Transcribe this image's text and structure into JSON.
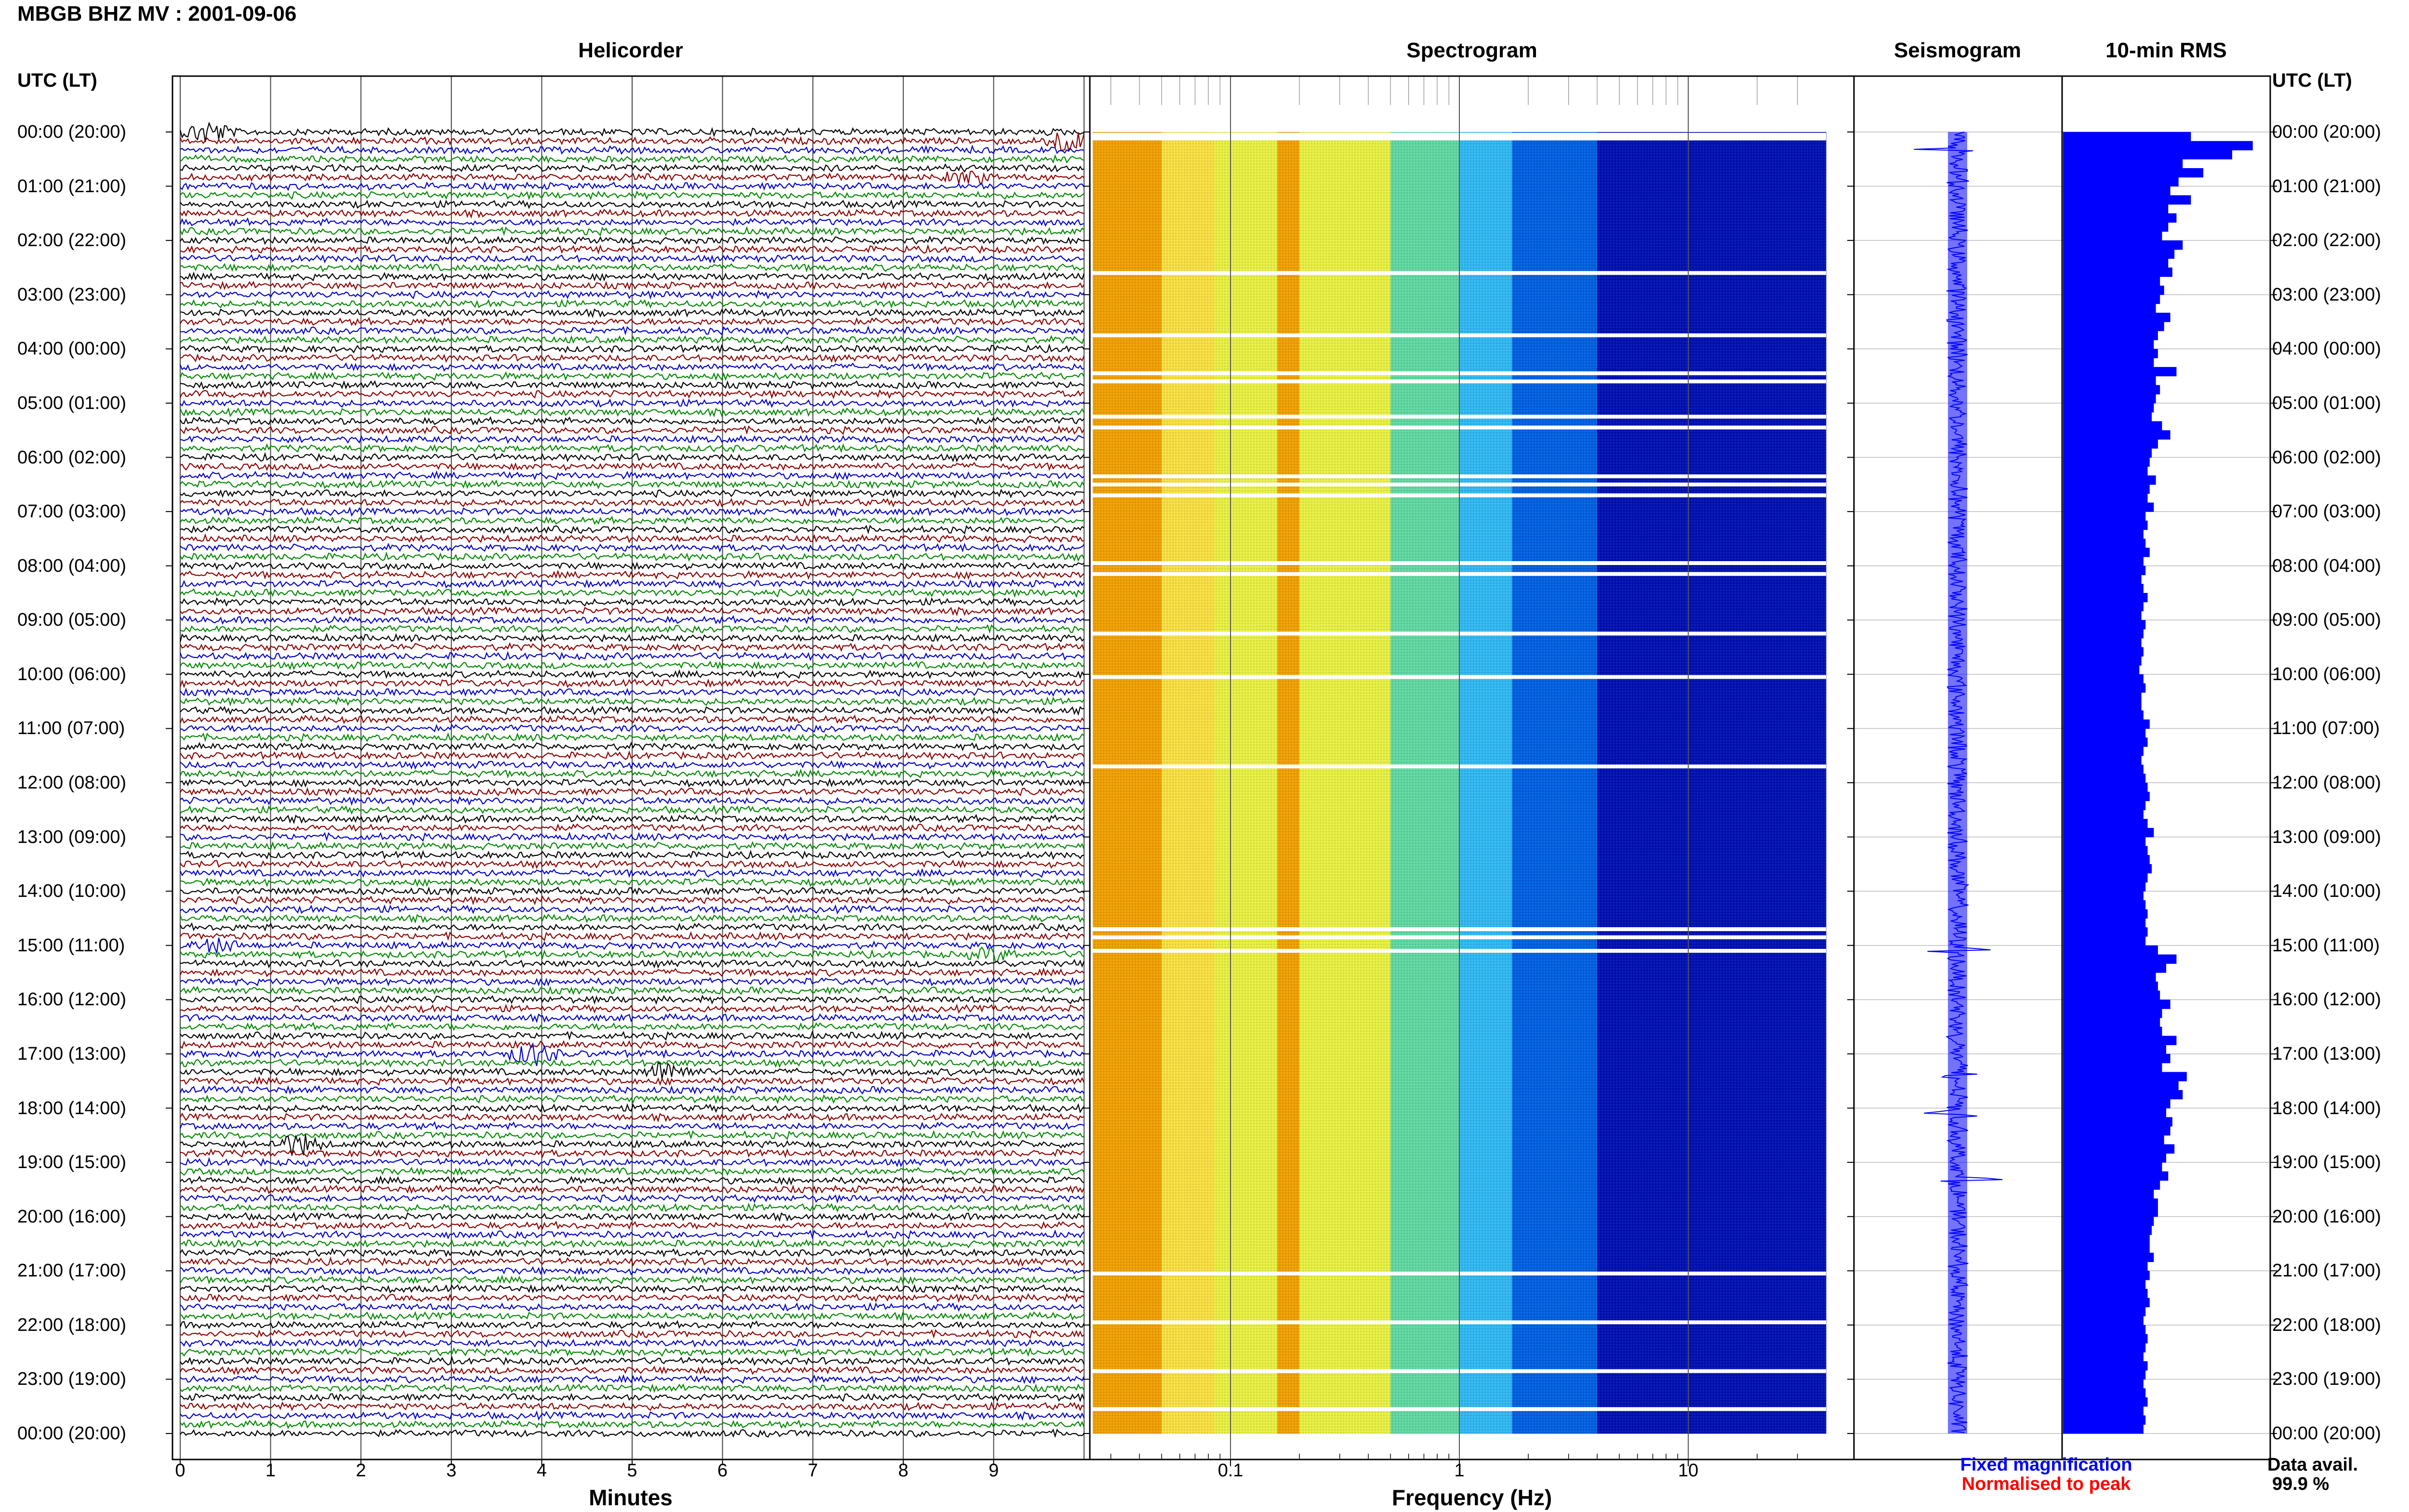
{
  "header": {
    "title": "MBGB BHZ MV : 2001-09-06",
    "panels": [
      "Helicorder",
      "Spectrogram",
      "Seismogram",
      "10-min RMS"
    ],
    "time_axis_title": "UTC (LT)"
  },
  "time_labels": [
    "00:00 (20:00)",
    "01:00 (21:00)",
    "02:00 (22:00)",
    "03:00 (23:00)",
    "04:00 (00:00)",
    "05:00 (01:00)",
    "06:00 (02:00)",
    "07:00 (03:00)",
    "08:00 (04:00)",
    "09:00 (05:00)",
    "10:00 (06:00)",
    "11:00 (07:00)",
    "12:00 (08:00)",
    "13:00 (09:00)",
    "14:00 (10:00)",
    "15:00 (11:00)",
    "16:00 (12:00)",
    "17:00 (13:00)",
    "18:00 (14:00)",
    "19:00 (15:00)",
    "20:00 (16:00)",
    "21:00 (17:00)",
    "22:00 (18:00)",
    "23:00 (19:00)",
    "00:00 (20:00)"
  ],
  "footer": {
    "minutes_ticks": [
      "0",
      "1",
      "2",
      "3",
      "4",
      "5",
      "6",
      "7",
      "8",
      "9"
    ],
    "minutes_label": "Minutes",
    "freq_ticks": [
      "0.1",
      "1",
      "10"
    ],
    "freq_label": "Frequency (Hz)",
    "legend_fixed": "Fixed magnification",
    "legend_norm": "Normalised to peak",
    "avail_label": "Data avail.",
    "avail_value": "99.9 %"
  },
  "colors": {
    "helicorder_traces": [
      "#000000",
      "#8b0000",
      "#0000cc",
      "#008800"
    ],
    "rms_bar": "#0000ff",
    "legend_fixed": "#0000ff",
    "legend_norm": "#ff0000",
    "spectro_ramp": [
      "#f0a000",
      "#f8e040",
      "#e8f040",
      "#60d8a0",
      "#30b8f0",
      "#0060e0",
      "#0010b0"
    ]
  },
  "chart_data": [
    {
      "type": "line",
      "name": "helicorder",
      "x_unit": "minutes",
      "xlim": [
        0,
        10
      ],
      "rows": 144,
      "row_minutes": 10,
      "events": [
        {
          "row": 0,
          "minute": 0.3,
          "amplitude": "high"
        },
        {
          "row": 1,
          "minute": 9.8,
          "amplitude": "high"
        },
        {
          "row": 5,
          "minute": 8.7,
          "amplitude": "medium"
        },
        {
          "row": 90,
          "minute": 0.4,
          "amplitude": "medium"
        },
        {
          "row": 91,
          "minute": 9.0,
          "amplitude": "medium"
        },
        {
          "row": 102,
          "minute": 3.9,
          "amplitude": "high"
        },
        {
          "row": 104,
          "minute": 5.4,
          "amplitude": "high"
        },
        {
          "row": 112,
          "minute": 1.3,
          "amplitude": "high"
        }
      ]
    },
    {
      "type": "heatmap",
      "name": "spectrogram",
      "x_scale": "log",
      "xlim_hz": [
        0.025,
        40
      ],
      "x_ticks": [
        0.1,
        1,
        10
      ],
      "y_unit": "hours UTC",
      "ylim": [
        0,
        24
      ],
      "gap_hours": [
        0.05,
        0.12,
        2.6,
        3.75,
        4.45,
        4.6,
        5.25,
        5.45,
        6.35,
        6.5,
        6.7,
        7.95,
        8.15,
        9.25,
        10.05,
        11.7,
        14.7,
        14.85,
        15.1,
        21.05,
        21.95,
        22.85,
        23.55
      ]
    },
    {
      "type": "line",
      "name": "seismogram",
      "y_unit": "hours UTC",
      "ylim": [
        0,
        24
      ],
      "spikes_hours": [
        0.3,
        15.1,
        17.4,
        18.1,
        19.3
      ]
    },
    {
      "type": "bar",
      "name": "10-min RMS",
      "orientation": "horizontal",
      "y_unit": "hours UTC",
      "ylim": [
        0,
        24
      ],
      "values": [
        0.62,
        0.92,
        0.82,
        0.58,
        0.68,
        0.56,
        0.52,
        0.62,
        0.51,
        0.55,
        0.51,
        0.48,
        0.58,
        0.54,
        0.51,
        0.53,
        0.47,
        0.49,
        0.47,
        0.45,
        0.52,
        0.49,
        0.46,
        0.44,
        0.46,
        0.44,
        0.55,
        0.45,
        0.47,
        0.45,
        0.44,
        0.43,
        0.48,
        0.52,
        0.46,
        0.43,
        0.42,
        0.41,
        0.45,
        0.42,
        0.41,
        0.44,
        0.4,
        0.41,
        0.39,
        0.4,
        0.42,
        0.39,
        0.4,
        0.38,
        0.39,
        0.41,
        0.39,
        0.38,
        0.4,
        0.39,
        0.38,
        0.39,
        0.38,
        0.37,
        0.39,
        0.4,
        0.38,
        0.38,
        0.39,
        0.42,
        0.4,
        0.41,
        0.39,
        0.38,
        0.39,
        0.4,
        0.41,
        0.42,
        0.4,
        0.39,
        0.41,
        0.44,
        0.4,
        0.41,
        0.42,
        0.43,
        0.41,
        0.4,
        0.39,
        0.4,
        0.41,
        0.4,
        0.41,
        0.4,
        0.46,
        0.55,
        0.5,
        0.45,
        0.46,
        0.47,
        0.52,
        0.48,
        0.47,
        0.48,
        0.55,
        0.5,
        0.52,
        0.48,
        0.6,
        0.56,
        0.58,
        0.52,
        0.5,
        0.53,
        0.52,
        0.49,
        0.54,
        0.5,
        0.48,
        0.51,
        0.47,
        0.44,
        0.46,
        0.46,
        0.44,
        0.43,
        0.42,
        0.42,
        0.44,
        0.41,
        0.42,
        0.4,
        0.41,
        0.42,
        0.4,
        0.39,
        0.4,
        0.41,
        0.4,
        0.39,
        0.41,
        0.4,
        0.39,
        0.4,
        0.41,
        0.39,
        0.4,
        0.39
      ]
    }
  ]
}
